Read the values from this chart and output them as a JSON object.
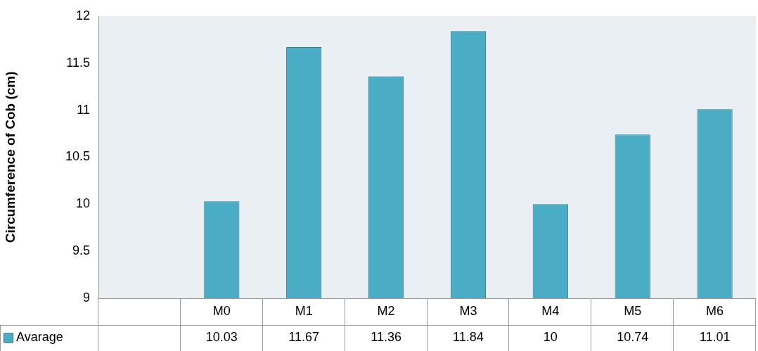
{
  "chart_data": {
    "type": "bar",
    "ylabel": "Circumference of Cob (cm)",
    "categories": [
      null,
      "M0",
      "M1",
      "M2",
      "M3",
      "M4",
      "M5",
      "M6"
    ],
    "series": [
      {
        "name": "Avarage",
        "color": "#4bacc6",
        "values": [
          null,
          10.03,
          11.67,
          11.36,
          11.84,
          10,
          10.74,
          11.01
        ]
      }
    ],
    "ylim": [
      9,
      12
    ],
    "yticks": [
      9,
      9.5,
      10,
      10.5,
      11,
      11.5,
      12
    ],
    "grid": false,
    "legend": "bottom left",
    "data_labels": true
  }
}
